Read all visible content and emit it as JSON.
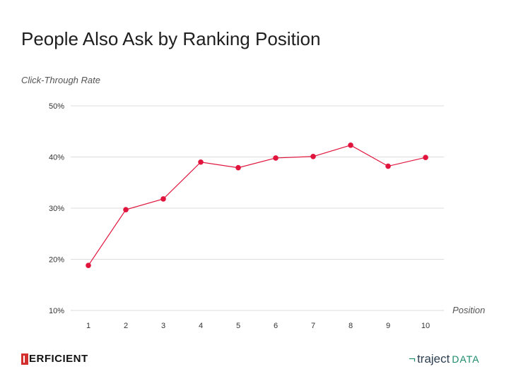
{
  "title": "People Also Ask by Ranking Position",
  "chart_data": {
    "type": "line",
    "title": "People Also Ask by Ranking Position",
    "xlabel": "Position",
    "ylabel": "Click-Through Rate",
    "categories": [
      "1",
      "2",
      "3",
      "4",
      "5",
      "6",
      "7",
      "8",
      "9",
      "10"
    ],
    "values": [
      18.8,
      29.7,
      31.8,
      39.0,
      37.9,
      39.8,
      40.1,
      42.3,
      38.2,
      39.9
    ],
    "ylim": [
      10,
      50
    ],
    "yticks": [
      "10%",
      "20%",
      "30%",
      "40%",
      "50%"
    ],
    "grid": true,
    "line_color": "#e0143c"
  },
  "logos": {
    "left": "ERFICIENT",
    "right_main": "traject",
    "right_suffix": "DATA",
    "right_mark": "¬"
  }
}
